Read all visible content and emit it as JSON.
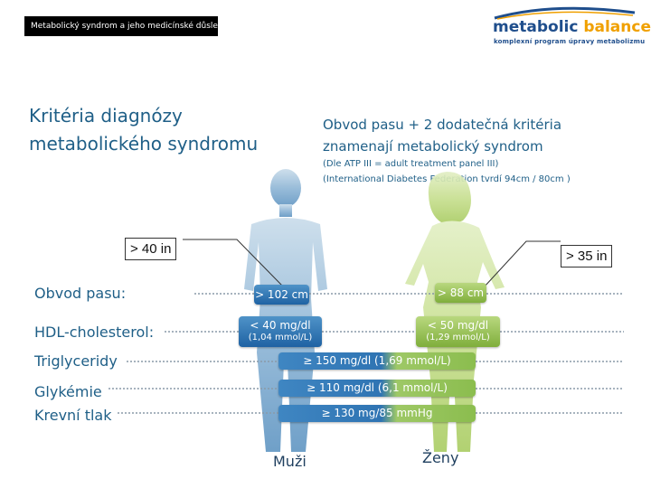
{
  "header": {
    "topbar_text": "Metabolický syndrom a jeho medicínské důsledky",
    "logo_word1": "metabolic",
    "logo_word2": "balance",
    "logo_tagline": "komplexní program úpravy metabolizmu"
  },
  "title": {
    "line1": "Kritéria diagnózy",
    "line2": "metabolického syndromu"
  },
  "criteria": {
    "heading_line1": "Obvod pasu + 2 dodatečná kritéria",
    "heading_line2": "znamenají metabolický syndrom",
    "note_line1": "(Dle ATP III = adult treatment panel III)",
    "note_line2": "(International Diabetes Federation tvrdí  94cm / 80cm )"
  },
  "callouts": {
    "men": "> 40 in",
    "women": "> 35 in"
  },
  "labels": {
    "waist": "Obvod pasu:",
    "hdl": "HDL-cholesterol:",
    "trig": "Triglyceridy",
    "glyc": "Glykémie",
    "bp": "Krevní tlak"
  },
  "men": {
    "label": "Muži",
    "waist": "> 102 cm",
    "hdl": "< 40 mg/dl",
    "hdl_sub": "(1,04 mmol/L)"
  },
  "women": {
    "label": "Ženy",
    "waist": "> 88 cm",
    "hdl": "< 50 mg/dl",
    "hdl_sub": "(1,29 mmol/L)"
  },
  "shared": {
    "trig": "≥ 150 mg/dl (1,69 mmol/L)",
    "glyc": "≥ 110 mg/dl (6,1 mmol/L)",
    "bp": "≥ 130 mg/85 mmHg"
  },
  "colors": {
    "men_blue": "#2f74b3",
    "women_green": "#8bbd4e",
    "text_blue": "#1f5f87"
  }
}
